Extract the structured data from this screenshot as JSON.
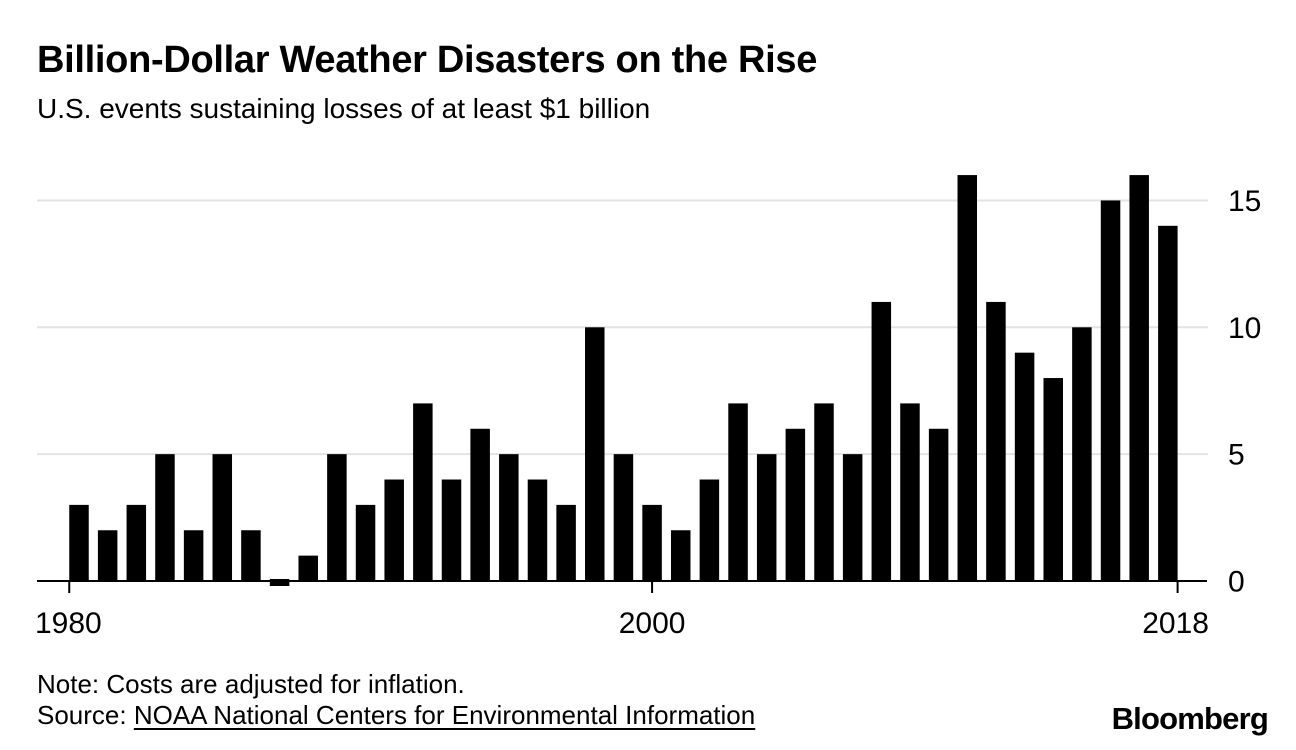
{
  "header": {
    "title": "Billion-Dollar Weather Disasters on the Rise",
    "subtitle": "U.S. events sustaining losses of at least $1 billion"
  },
  "chart_data": {
    "type": "bar",
    "title": "Billion-Dollar Weather Disasters on the Rise",
    "subtitle": "U.S. events sustaining losses of at least $1 billion",
    "xlabel": "",
    "ylabel": "",
    "categories": [
      1980,
      1981,
      1982,
      1983,
      1984,
      1985,
      1986,
      1987,
      1988,
      1989,
      1990,
      1991,
      1992,
      1993,
      1994,
      1995,
      1996,
      1997,
      1998,
      1999,
      2000,
      2001,
      2002,
      2003,
      2004,
      2005,
      2006,
      2007,
      2008,
      2009,
      2010,
      2011,
      2012,
      2013,
      2014,
      2015,
      2016,
      2017,
      2018
    ],
    "values": [
      3,
      2,
      3,
      5,
      2,
      5,
      2,
      0,
      1,
      5,
      3,
      4,
      7,
      4,
      6,
      5,
      4,
      3,
      10,
      5,
      3,
      2,
      4,
      7,
      5,
      6,
      7,
      5,
      11,
      7,
      6,
      16,
      11,
      9,
      8,
      10,
      15,
      16,
      14
    ],
    "ylim": [
      0,
      16
    ],
    "yticks": [
      0,
      5,
      10,
      15
    ],
    "xticks": [
      1980,
      2000,
      2018
    ],
    "y_axis_side": "right",
    "grid": "horizontal",
    "bar_color": "#000000",
    "gridline_color": "#e3e3e3",
    "axis_color": "#000000",
    "legend": "none"
  },
  "footer": {
    "note": "Note: Costs are adjusted for inflation.",
    "source_prefix": "Source: ",
    "source_link": "NOAA National Centers for Environmental Information",
    "logo": "Bloomberg"
  }
}
